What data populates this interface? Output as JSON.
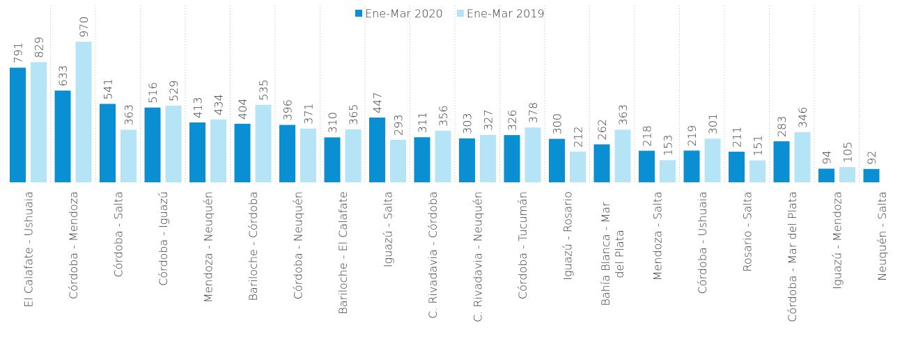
{
  "chart_data": {
    "type": "bar",
    "categories": [
      "El Calafate - Ushuaia",
      "Córdoba - Mendoza",
      "Córdoba - Salta",
      "Córdoba - Iguazú",
      "Mendoza - Neuquén",
      "Bariloche - Córdoba",
      "Córdoba - Neuquén",
      "Bariloche - El Calafate",
      "Iguazú - Salta",
      "C. Rivadavia - Córdoba",
      "C. Rivadavia - Neuquén",
      "Córdoba - Tucumán",
      "Iguazú - Rosario",
      "Bahía Blanca - Mar del Plata",
      "Mendoza - Salta",
      "Córdoba - Ushuaia",
      "Rosario - Salta",
      "Córdoba - Mar del Plata",
      "Iguazú - Mendoza",
      "Neuquén - Salta"
    ],
    "series": [
      {
        "name": "Ene-Mar 2020",
        "color": "#0a8fd3",
        "values": [
          791,
          633,
          541,
          516,
          413,
          404,
          396,
          310,
          447,
          311,
          303,
          326,
          300,
          262,
          218,
          219,
          211,
          283,
          94,
          92
        ]
      },
      {
        "name": "Ene-Mar 2019",
        "color": "#b5e4f7",
        "values": [
          829,
          970,
          363,
          529,
          434,
          535,
          371,
          365,
          293,
          356,
          327,
          378,
          212,
          363,
          153,
          301,
          151,
          346,
          105,
          null
        ]
      }
    ],
    "legend": "top"
  }
}
